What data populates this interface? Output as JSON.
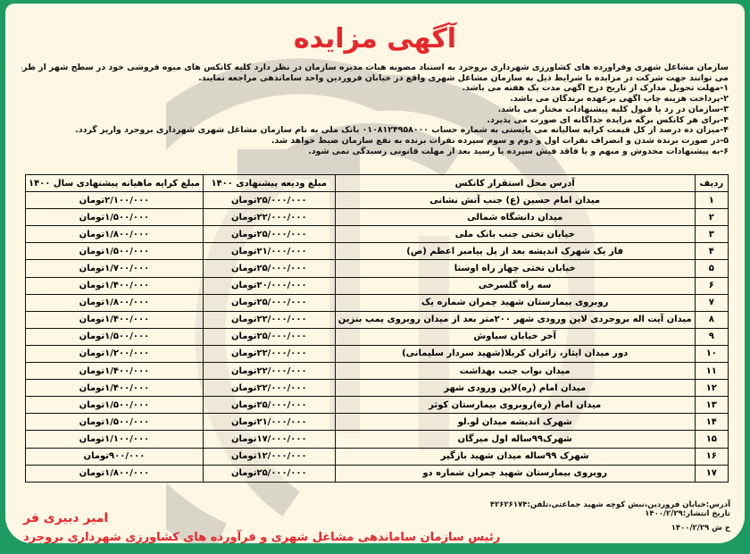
{
  "title": "آگهی مزایده",
  "intro": [
    "سازمان مشاغل شهری وفرآورده های کشاورزی شهرداری بروجرد به استناد مصوبه هیات مدیره سازمان در نظر دارد کلیه کانکس های میوه فروشی خود در سطح شهر از طریق مزایده عمومی به بخش خصوصی واگذار نماید. لذا کلیه متقاضیان",
    "می توانند جهت شرکت در مزایده با شرایط ذیل به سازمان مشاغل شهری واقع در خیابان فروردین واحد ساماندهی مراجعه نمایند.",
    "۱-مهلت تحویل مدارک از تاریخ درج آگهی مدت یک هفته می باشد.",
    "۲-پرداخت هزینه چاپ آگهی برعهده برندگان می باشد.",
    "۳-سازمان در رد یا قبول کلیه پیشنهادات مختار می باشد.",
    "۴-برای هر کانکس برگه مزایده جداگانه ای صورت می پذیرد.",
    "۴-میزان ده درصد از کل قیمت کرایه سالیانه می بایستی به شماره حساب ۰۱۰۸۱۲۴۹۵۸۰۰۰ بانک ملی به نام سازمان مشاغل شهری شهرداری بروجرد واریز گردد.",
    "۵-در صورت برنده شدن و انصراف نفرات اول و دوم و سوم سپرده نفرات برنده به نفع سازمان ضبط خواهد شد.",
    "۶-به پیشنهادات مخدوش و مبهم و یا فاقد فیش سپرده یا رسید بعد از مهلت قانونی رسیدگی نمی شود."
  ],
  "table": {
    "headers": [
      "ردیف",
      "آدرس محل استقرار کانکس",
      "مبلغ ودیعه پیشنهادی ۱۴۰۰",
      "مبلغ کرایه ماهیانه پیشنهادی سال ۱۴۰۰"
    ],
    "rows": [
      [
        "۱",
        "میدان امام حسین (ع) جنب آتش نشانی",
        "۲۵/۰۰۰/۰۰۰تومان",
        "۲/۱۰۰/۰۰۰تومان"
      ],
      [
        "۲",
        "میدان دانشگاه شمالی",
        "۲۲/۰۰۰/۰۰۰تومان",
        "۱/۵۰۰/۰۰۰تومان"
      ],
      [
        "۳",
        "خیابان تختی جنب بانک ملی",
        "۲۵/۰۰۰/۰۰۰تومان",
        "۱/۸۰۰/۰۰۰تومان"
      ],
      [
        "۴",
        "فاز یک شهرک اندیشه بعد از پل پیامبر اعظم (ص)",
        "۲۱/۰۰۰/۰۰۰تومان",
        "۱/۵۰۰/۰۰۰تومان"
      ],
      [
        "۵",
        "خیابان تختی چهار راه اوستا",
        "۲۵/۰۰۰/۰۰۰تومان",
        "۱/۷۰۰/۰۰۰تومان"
      ],
      [
        "۶",
        "سه راه گلسرخی",
        "۲۰/۰۰۰/۰۰۰تومان",
        "۱/۴۰۰/۰۰۰تومان"
      ],
      [
        "۷",
        "روبروی بیمارستان شهید چمران شماره یک",
        "۲۵/۰۰۰/۰۰۰تومان",
        "۱/۸۰۰/۰۰۰تومان"
      ],
      [
        "۸",
        "میدان آیت اله بروجردی لاین ورودی شهر ۲۰۰متر بعد از میدان روبروی پمپ بنزین",
        "۲۲/۰۰۰/۰۰۰تومان",
        "۱/۴۰۰/۰۰۰تومان"
      ],
      [
        "۹",
        "آخر خیابان سیاوش",
        "۲۵/۰۰۰/۰۰۰تومان",
        "۱/۵۰۰/۰۰۰تومان"
      ],
      [
        "۱۰",
        "دور میدان ایثار، زائران کربلا(شهید سردار سلیمانی)",
        "۲۲/۰۰۰/۰۰۰تومان",
        "۱/۲۰۰/۰۰۰تومان"
      ],
      [
        "۱۱",
        "میدان نواب جنب بهداشت",
        "۲۲/۰۰۰/۰۰۰تومان",
        "۱/۴۰۰/۰۰۰تومان"
      ],
      [
        "۱۲",
        "میدان امام (ره)لاین ورودی شهر",
        "۲۲/۰۰۰/۰۰۰تومان",
        "۱/۴۰۰/۰۰۰تومان"
      ],
      [
        "۱۳",
        "میدان امام (ره)روبروی بیمارستان کوثر",
        "۲۵/۰۰۰/۰۰۰تومان",
        "۱/۵۰۰/۰۰۰تومان"
      ],
      [
        "۱۴",
        "شهرک اندیشه میدان لو.لو",
        "۲۱/۰۰۰/۰۰۰تومان",
        "۱/۵۰۰/۰۰۰تومان"
      ],
      [
        "۱۵",
        "شهرک۹۹ساله اول میرگان",
        "۱۷/۰۰۰/۰۰۰تومان",
        "۱/۱۰۰/۰۰۰تومان"
      ],
      [
        "۱۶",
        "شهرک ۹۹ساله میدان شهید بازگیر",
        "۱۲/۰۰۰/۰۰۰تومان",
        "۹۰۰/۰۰۰تومان"
      ],
      [
        "۱۷",
        "روبروی بیمارستان شهید چمران شماره دو",
        "۲۵/۰۰۰/۰۰۰تومان",
        "۱/۸۰۰/۰۰۰تومان"
      ]
    ]
  },
  "footer": {
    "address": "آدرس:خیابان فروردین،نبش کوچه شهید جماعتی،تلفن:۴۲۶۲۶۱۷۴",
    "publish_date": "تاریخ انتشار:۱۴۰۰/۲/۲۹",
    "code": "خ ش ۱۴۰۰/۲/۲۹",
    "signer_name": "امیر دبیری فر",
    "signer_title": "رئیس سازمان ساماندهی مشاغل شهری و فرآورده های کشاورزی شهرداری بروجرد"
  },
  "colors": {
    "frame": "#1e9a63",
    "background": "#fdf7e4",
    "accent": "#e8262b"
  }
}
